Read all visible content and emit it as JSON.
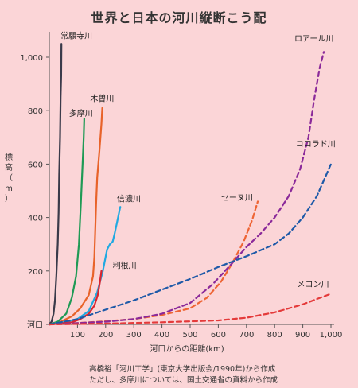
{
  "chart_data": {
    "type": "line",
    "title": "世界と日本の河川縦断こう配",
    "ylabel": "標高（m）",
    "xlabel": "河口からの距離(km)",
    "xlim": [
      0,
      1000
    ],
    "ylim": [
      0,
      1000
    ],
    "x_ticks": [
      "100",
      "200",
      "300",
      "400",
      "500",
      "600",
      "700",
      "800",
      "900",
      "1,000"
    ],
    "y_ticks": [
      "河口",
      "200",
      "400",
      "600",
      "800",
      "1,000"
    ],
    "grid": false,
    "legend": "labels placed next to each line",
    "series": [
      {
        "name": "常願寺川",
        "color": "#3a3a4a",
        "dash": false,
        "points": [
          [
            0,
            0
          ],
          [
            8,
            10
          ],
          [
            15,
            40
          ],
          [
            20,
            90
          ],
          [
            25,
            180
          ],
          [
            30,
            300
          ],
          [
            33,
            420
          ],
          [
            35,
            560
          ],
          [
            38,
            700
          ],
          [
            40,
            850
          ],
          [
            42,
            930
          ],
          [
            43,
            1050
          ]
        ]
      },
      {
        "name": "木曽川",
        "color": "#e8632a",
        "dash": false,
        "points": [
          [
            0,
            0
          ],
          [
            40,
            10
          ],
          [
            80,
            30
          ],
          [
            110,
            60
          ],
          [
            140,
            110
          ],
          [
            155,
            180
          ],
          [
            160,
            250
          ],
          [
            163,
            350
          ],
          [
            166,
            450
          ],
          [
            170,
            550
          ],
          [
            178,
            650
          ],
          [
            185,
            750
          ],
          [
            188,
            810
          ]
        ]
      },
      {
        "name": "多摩川",
        "color": "#1f9a55",
        "dash": false,
        "points": [
          [
            0,
            0
          ],
          [
            30,
            10
          ],
          [
            60,
            40
          ],
          [
            80,
            100
          ],
          [
            95,
            180
          ],
          [
            105,
            300
          ],
          [
            112,
            450
          ],
          [
            118,
            600
          ],
          [
            122,
            700
          ],
          [
            124,
            770
          ]
        ]
      },
      {
        "name": "信濃川",
        "color": "#21a9e1",
        "dash": false,
        "points": [
          [
            0,
            0
          ],
          [
            50,
            8
          ],
          [
            100,
            20
          ],
          [
            140,
            50
          ],
          [
            170,
            120
          ],
          [
            190,
            200
          ],
          [
            205,
            280
          ],
          [
            215,
            300
          ],
          [
            225,
            310
          ],
          [
            232,
            340
          ],
          [
            240,
            380
          ],
          [
            248,
            420
          ],
          [
            252,
            440
          ]
        ]
      },
      {
        "name": "利根川",
        "color": "#d92630",
        "dash": false,
        "points": [
          [
            0,
            0
          ],
          [
            40,
            4
          ],
          [
            80,
            8
          ],
          [
            110,
            20
          ],
          [
            140,
            40
          ],
          [
            160,
            70
          ],
          [
            172,
            110
          ],
          [
            180,
            160
          ],
          [
            185,
            200
          ]
        ]
      },
      {
        "name": "セーヌ川",
        "color": "#ee6535",
        "dash": true,
        "points": [
          [
            0,
            0
          ],
          [
            100,
            5
          ],
          [
            200,
            12
          ],
          [
            300,
            20
          ],
          [
            400,
            35
          ],
          [
            500,
            60
          ],
          [
            560,
            100
          ],
          [
            610,
            160
          ],
          [
            650,
            230
          ],
          [
            690,
            310
          ],
          [
            720,
            390
          ],
          [
            740,
            460
          ]
        ]
      },
      {
        "name": "ロアール川",
        "color": "#8b2a9a",
        "dash": true,
        "points": [
          [
            0,
            0
          ],
          [
            100,
            5
          ],
          [
            200,
            10
          ],
          [
            300,
            20
          ],
          [
            400,
            40
          ],
          [
            500,
            80
          ],
          [
            580,
            150
          ],
          [
            650,
            230
          ],
          [
            700,
            290
          ],
          [
            750,
            340
          ],
          [
            800,
            400
          ],
          [
            850,
            480
          ],
          [
            890,
            580
          ],
          [
            920,
            700
          ],
          [
            940,
            840
          ],
          [
            960,
            960
          ],
          [
            975,
            1020
          ]
        ]
      },
      {
        "name": "コロラド川",
        "color": "#1e5aa8",
        "dash": true,
        "points": [
          [
            0,
            0
          ],
          [
            100,
            20
          ],
          [
            200,
            55
          ],
          [
            300,
            90
          ],
          [
            400,
            130
          ],
          [
            500,
            170
          ],
          [
            600,
            215
          ],
          [
            700,
            255
          ],
          [
            800,
            300
          ],
          [
            850,
            340
          ],
          [
            900,
            400
          ],
          [
            950,
            480
          ],
          [
            1000,
            600
          ]
        ]
      },
      {
        "name": "メコン川",
        "color": "#e43a3a",
        "dash": true,
        "points": [
          [
            0,
            0
          ],
          [
            200,
            3
          ],
          [
            400,
            8
          ],
          [
            600,
            15
          ],
          [
            700,
            25
          ],
          [
            800,
            45
          ],
          [
            900,
            75
          ],
          [
            950,
            95
          ],
          [
            1000,
            115
          ]
        ]
      }
    ],
    "annotations": [
      {
        "text": "常願寺川",
        "x": 40,
        "y": 1070,
        "anchor": "start"
      },
      {
        "text": "木曽川",
        "x": 145,
        "y": 835,
        "anchor": "start"
      },
      {
        "text": "多摩川",
        "x": 70,
        "y": 780,
        "anchor": "start"
      },
      {
        "text": "信濃川",
        "x": 240,
        "y": 460,
        "anchor": "start"
      },
      {
        "text": "利根川",
        "x": 225,
        "y": 210,
        "anchor": "start"
      },
      {
        "text": "セーヌ川",
        "x": 610,
        "y": 465,
        "anchor": "start"
      },
      {
        "text": "ロアール川",
        "x": 870,
        "y": 1060,
        "anchor": "start"
      },
      {
        "text": "コロラド川",
        "x": 875,
        "y": 665,
        "anchor": "start"
      },
      {
        "text": "メコン川",
        "x": 880,
        "y": 140,
        "anchor": "start"
      }
    ]
  },
  "source_lines": [
    "高橋裕「河川工学」(東京大学出版会/1990年)から作成",
    "ただし、多摩川については、国土交通省の資料から作成"
  ]
}
